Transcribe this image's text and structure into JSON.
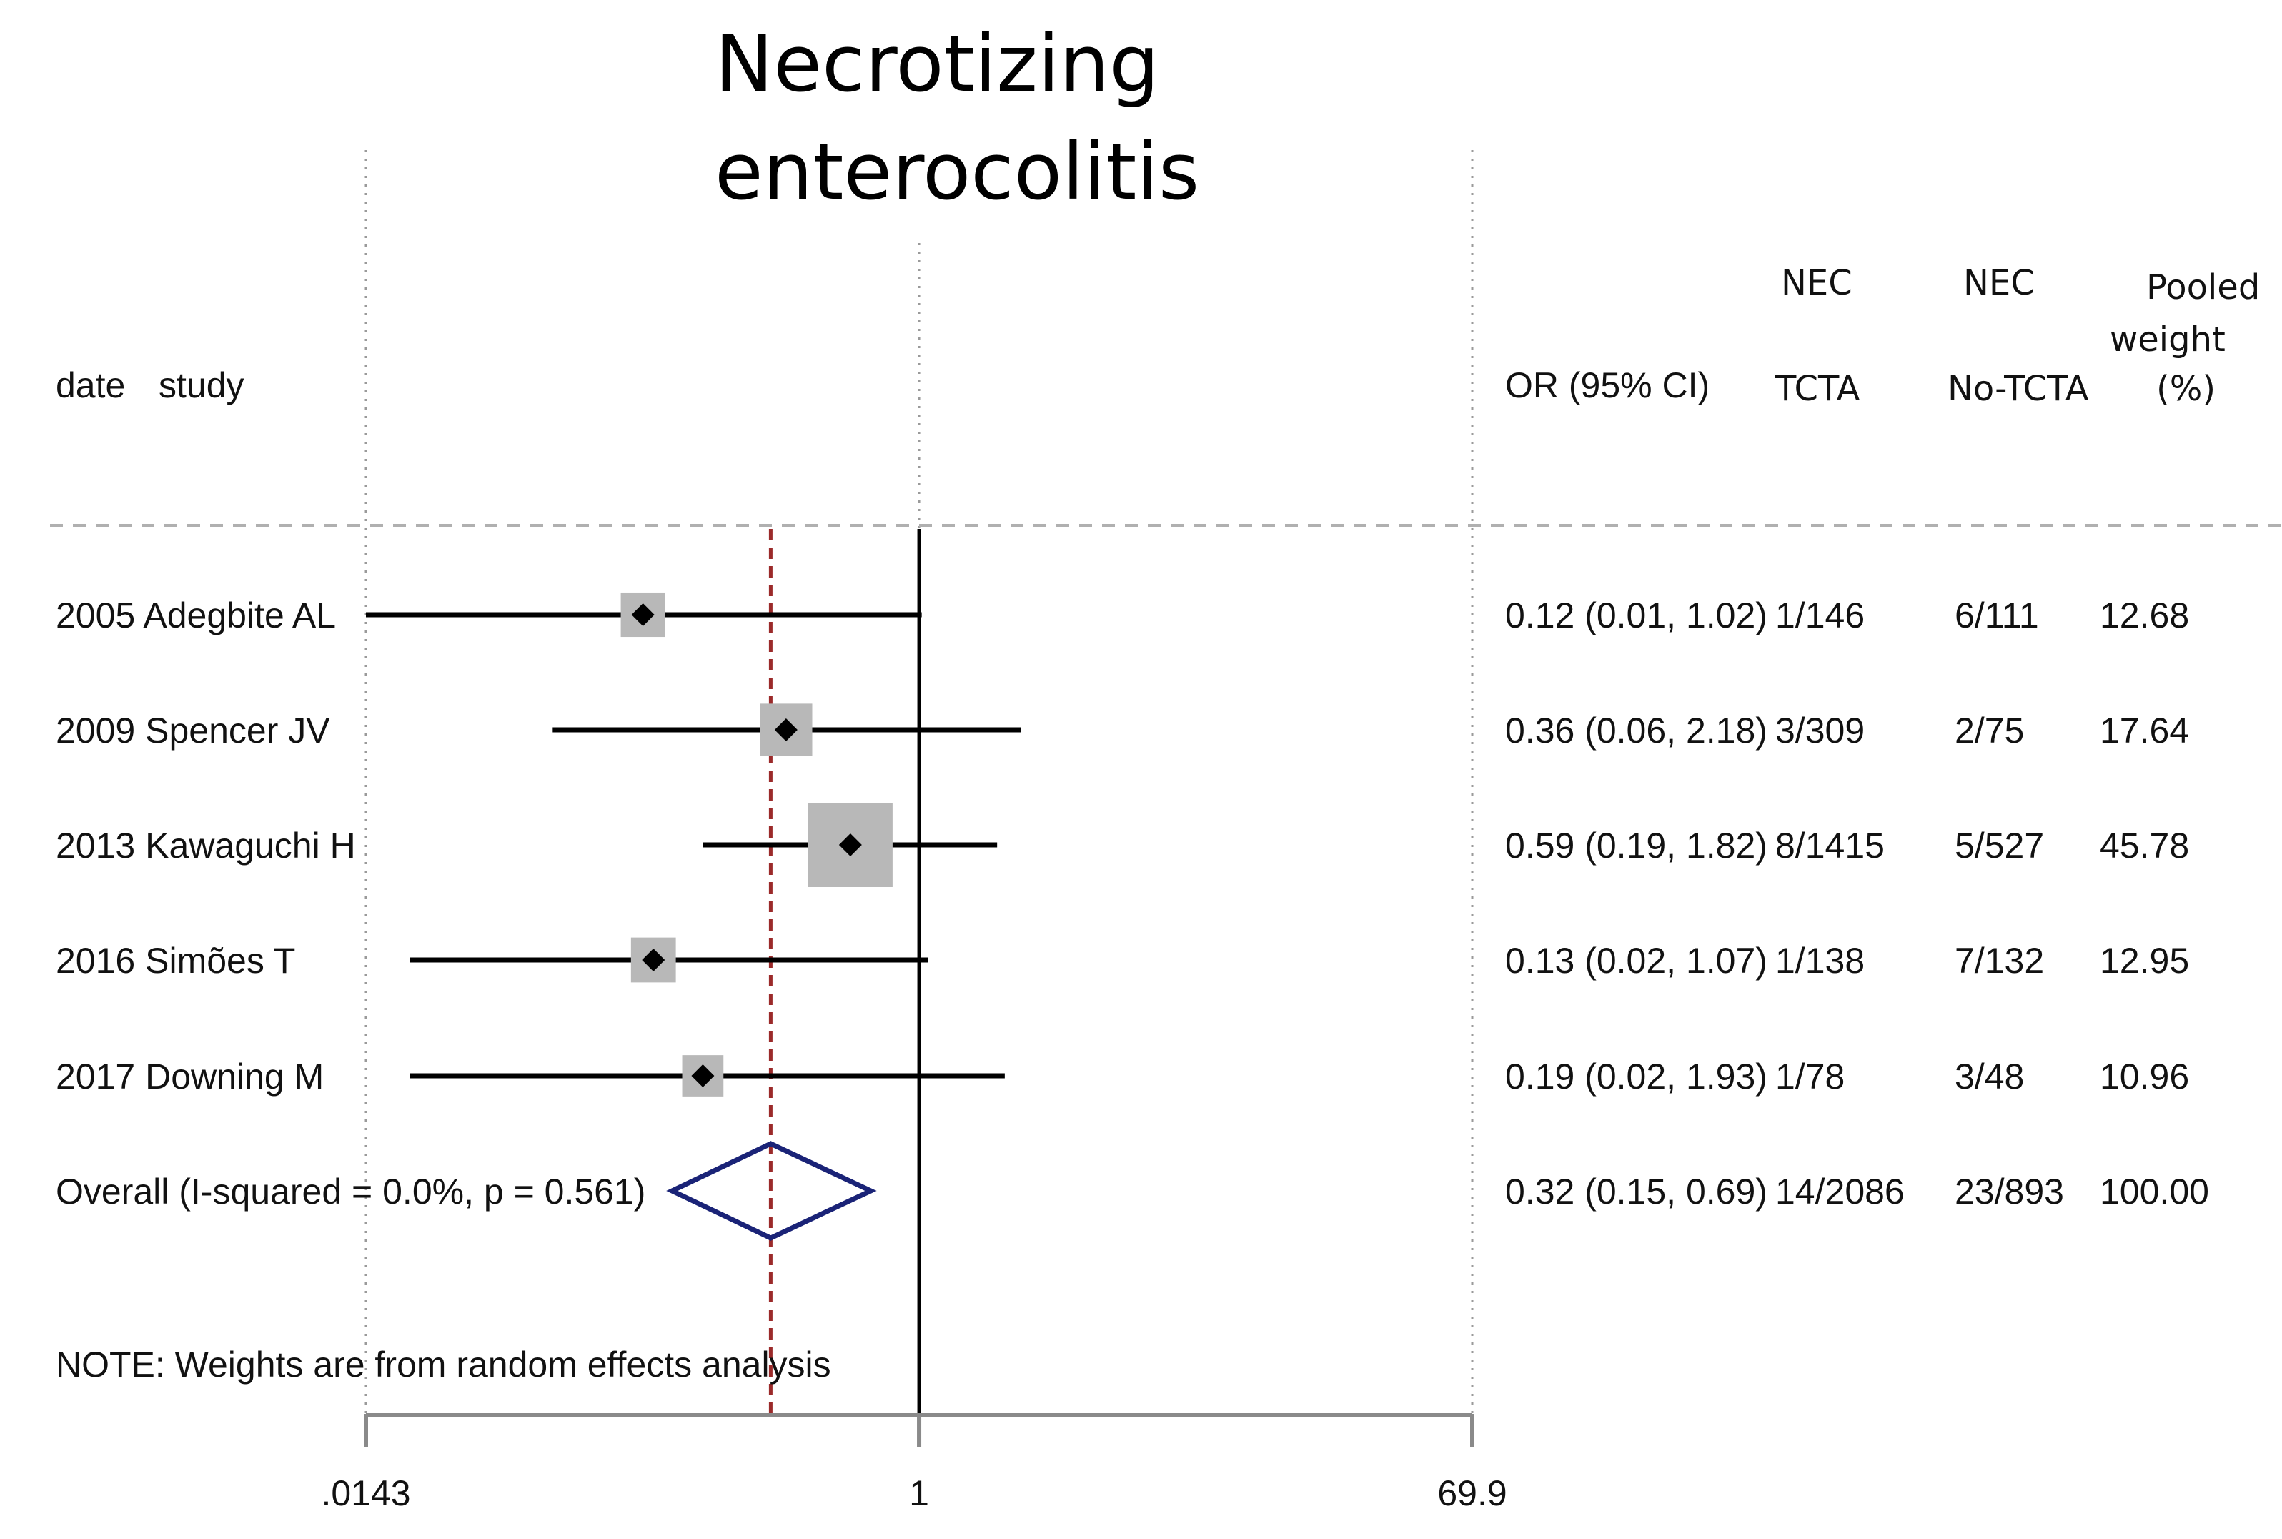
{
  "chart_data": {
    "type": "forest",
    "title_lines": [
      "Necrotizing",
      "enterocolitis"
    ],
    "headers": {
      "date": "date",
      "study": "study",
      "or": "OR (95% CI)",
      "nec_tcta": [
        "NEC",
        "TCTA"
      ],
      "nec_no_tcta": [
        "NEC",
        "No-TCTA"
      ],
      "weight": [
        "Pooled",
        "weight",
        "(%)"
      ]
    },
    "x_scale": "log",
    "x_ticks": [
      {
        "value": 0.0143,
        "label": ".0143"
      },
      {
        "value": 1,
        "label": "1"
      },
      {
        "value": 69.9,
        "label": "69.9"
      }
    ],
    "null_line": 1,
    "studies": [
      {
        "label": "2005  Adegbite AL",
        "or": 0.12,
        "ci": [
          0.01,
          1.02
        ],
        "or_text": "0.12 (0.01, 1.02)",
        "tcta": "1/146",
        "no_tcta": "6/111",
        "weight": 12.68,
        "weight_text": "12.68"
      },
      {
        "label": "2009  Spencer JV",
        "or": 0.36,
        "ci": [
          0.06,
          2.18
        ],
        "or_text": "0.36 (0.06, 2.18)",
        "tcta": "3/309",
        "no_tcta": "2/75",
        "weight": 17.64,
        "weight_text": "17.64"
      },
      {
        "label": "2013  Kawaguchi H",
        "or": 0.59,
        "ci": [
          0.19,
          1.82
        ],
        "or_text": "0.59 (0.19, 1.82)",
        "tcta": "8/1415",
        "no_tcta": "5/527",
        "weight": 45.78,
        "weight_text": "45.78"
      },
      {
        "label": "2016  Simões T",
        "or": 0.13,
        "ci": [
          0.02,
          1.07
        ],
        "or_text": "0.13 (0.02, 1.07)",
        "tcta": "1/138",
        "no_tcta": "7/132",
        "weight": 12.95,
        "weight_text": "12.95"
      },
      {
        "label": "2017  Downing M",
        "or": 0.19,
        "ci": [
          0.02,
          1.93
        ],
        "or_text": "0.19 (0.02, 1.93)",
        "tcta": "1/78",
        "no_tcta": "3/48",
        "weight": 10.96,
        "weight_text": "10.96"
      }
    ],
    "overall": {
      "label": "Overall  (I-squared = 0.0%, p = 0.561)",
      "or": 0.32,
      "ci": [
        0.15,
        0.69
      ],
      "or_text": "0.32 (0.15, 0.69)",
      "tcta": "14/2086",
      "no_tcta": "23/893",
      "weight_text": "100.00"
    },
    "note": "NOTE: Weights are from random effects analysis",
    "colors": {
      "ci_line": "#000000",
      "weight_box": "#b8b8b8",
      "point": "#000000",
      "diamond": "#1a2377",
      "pooled_line": "#9b2a2a",
      "null_line": "#000000",
      "grid": "#9a9a9a",
      "axis": "#8a8a8a",
      "separator": "#b0b0b0"
    }
  }
}
